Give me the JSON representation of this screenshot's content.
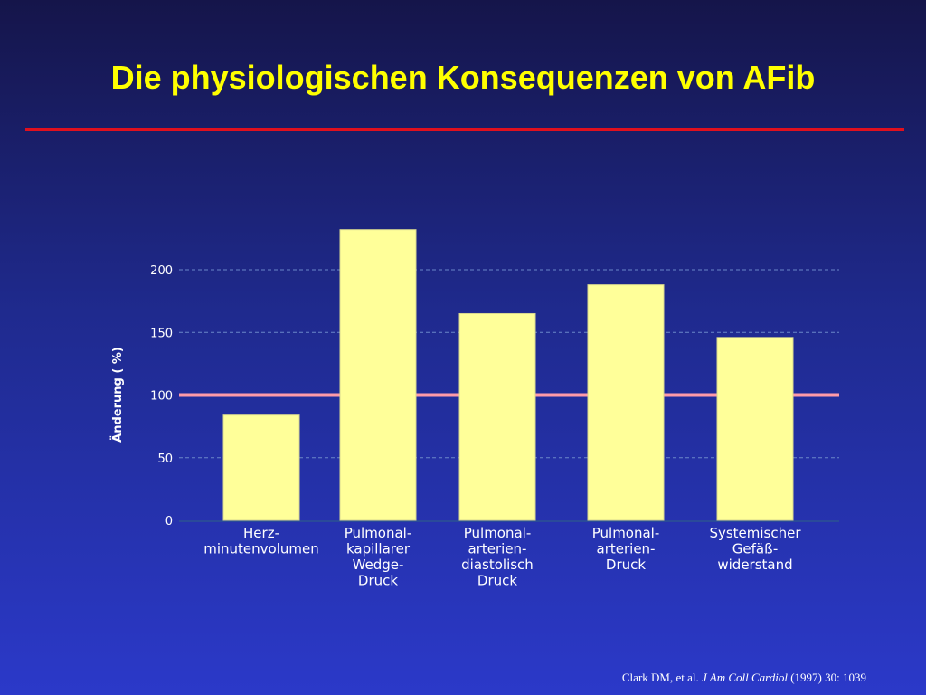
{
  "slide": {
    "title": "Die physiologischen Konsequenzen von AFib",
    "citation": {
      "authors": "Clark DM, et al.",
      "journal": "J Am Coll Cardiol",
      "details": "(1997) 30: 1039"
    }
  },
  "colors": {
    "title": "#ffff00",
    "rule": "#e0101e",
    "bar_fill": "#ffff99",
    "reference_line": "#ff9aa8",
    "gridline": "#6b87c9",
    "baseline": "#2a4a9a"
  },
  "chart_data": {
    "type": "bar",
    "ylabel": "Änderung ( %)",
    "ylim": [
      0,
      240
    ],
    "yticks": [
      0,
      50,
      100,
      150,
      200
    ],
    "grid": true,
    "reference_line": 100,
    "categories": [
      [
        "Herz-",
        "minutenvolumen"
      ],
      [
        "Pulmonal-",
        "kapillarer",
        "Wedge-",
        "Druck"
      ],
      [
        "Pulmonal-",
        "arterien-",
        "diastolisch",
        "Druck"
      ],
      [
        "Pulmonal-",
        "arterien-",
        "Druck"
      ],
      [
        "Systemischer",
        "Gefäß-",
        "widerstand"
      ]
    ],
    "values": [
      84,
      232,
      165,
      188,
      146
    ]
  }
}
